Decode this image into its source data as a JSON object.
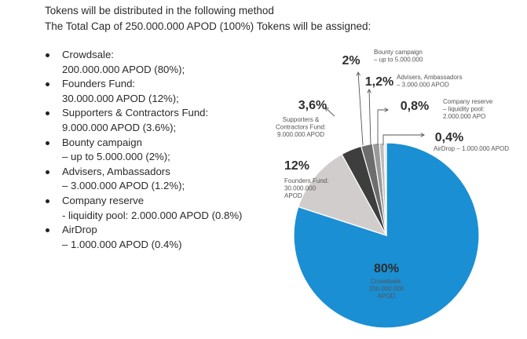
{
  "intro": {
    "line1": "Tokens will be distributed in the following method",
    "line2": "The Total Cap of 250.000.000 APOD (100%) Tokens will be assigned:"
  },
  "list": [
    {
      "name": "Crowdsale:",
      "detail": "200.000.000 APOD (80%);"
    },
    {
      "name": "Founders Fund:",
      "detail": "30.000.000 APOD (12%);"
    },
    {
      "name": "Supporters & Contractors Fund:",
      "detail": "9.000.000 APOD (3.6%);"
    },
    {
      "name": "Bounty campaign",
      "detail": "– up to 5.000.000 (2%);"
    },
    {
      "name": "Advisers, Ambassadors",
      "detail": "– 3.000.000 APOD (1.2%);"
    },
    {
      "name": "Company reserve",
      "detail": "- liquidity pool: 2.000.000 APOD (0.8%)"
    },
    {
      "name": "AirDrop",
      "detail": "– 1.000.000 APOD (0.4%)"
    }
  ],
  "chart_data": {
    "type": "pie",
    "total_label": "250.000.000 APOD",
    "slices": [
      {
        "key": "crowdsale",
        "value": 80,
        "pct_label": "80%",
        "desc": [
          "Crowdsale:",
          "200.000.000",
          "APOD"
        ],
        "color": "#1a8fd3"
      },
      {
        "key": "founders",
        "value": 12,
        "pct_label": "12%",
        "desc": [
          "Founders Fund:",
          "30.000.000",
          "APOD"
        ],
        "color": "#d2cdcd"
      },
      {
        "key": "supporters",
        "value": 3.6,
        "pct_label": "3,6%",
        "desc": [
          "Supporters &",
          "Contractors Fund:",
          "9.000.000 APOD"
        ],
        "color": "#3e3e3e"
      },
      {
        "key": "bounty",
        "value": 2,
        "pct_label": "2%",
        "desc": [
          "Bounty campaign",
          "– up to 5.000.000"
        ],
        "color": "#6d6d6d"
      },
      {
        "key": "advisers",
        "value": 1.2,
        "pct_label": "1,2%",
        "desc": [
          "Advisers, Ambassadors",
          "– 3.000.000 APOD"
        ],
        "color": "#9a9a9a"
      },
      {
        "key": "reserve",
        "value": 0.8,
        "pct_label": "0,8%",
        "desc": [
          "Company reserve",
          "– liquidity pool:",
          "2.000.000 APO"
        ],
        "color": "#bdbdbd"
      },
      {
        "key": "airdrop",
        "value": 0.4,
        "pct_label": "0,4%",
        "desc": [
          "AirDrop – 1.000.000 APOD"
        ],
        "color": "#e6e6e6"
      }
    ]
  }
}
